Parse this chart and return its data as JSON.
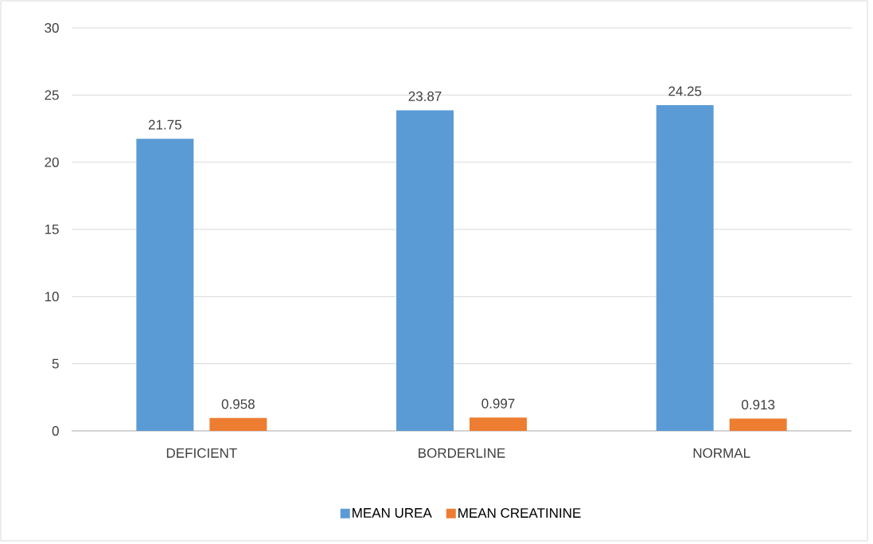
{
  "chart_data": {
    "type": "bar",
    "categories": [
      "DEFICIENT",
      "BORDERLINE",
      "NORMAL"
    ],
    "series": [
      {
        "name": "MEAN UREA",
        "color": "#5b9bd5",
        "values": [
          21.75,
          23.87,
          24.25
        ]
      },
      {
        "name": "MEAN CREATININE",
        "color": "#ed7d31",
        "values": [
          0.958,
          0.997,
          0.913
        ]
      }
    ],
    "ylim": [
      0,
      30
    ],
    "yticks": [
      0,
      5,
      10,
      15,
      20,
      25,
      30
    ],
    "grid": "y",
    "legend": "bottom",
    "data_labels": true
  }
}
